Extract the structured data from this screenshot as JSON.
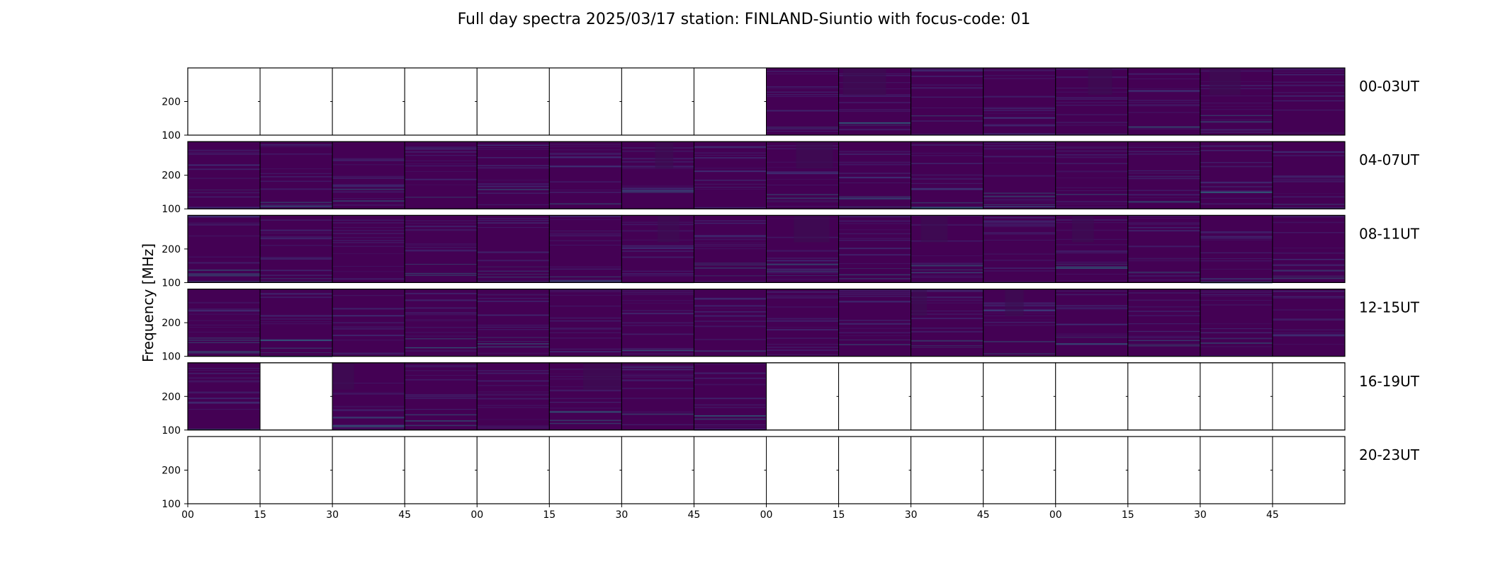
{
  "chart_data": {
    "type": "heatmap",
    "title": "Full day spectra 2025/03/17 station: FINLAND-Siuntio with focus-code: 01",
    "ylabel": "Frequency [MHz]",
    "ytick_labels": [
      "100",
      "200"
    ],
    "xtick_labels": [
      "00",
      "15",
      "30",
      "45",
      "00",
      "15",
      "30",
      "45",
      "00",
      "15",
      "30",
      "45",
      "00",
      "15",
      "30",
      "45"
    ],
    "colormap": "viridis",
    "row_labels": [
      "00-03UT",
      "04-07UT",
      "08-11UT",
      "12-15UT",
      "16-19UT",
      "20-23UT"
    ],
    "panels_per_row": 16,
    "data_available": [
      [
        0,
        0,
        0,
        0,
        0,
        0,
        0,
        0,
        1,
        1,
        1,
        1,
        1,
        1,
        1,
        1
      ],
      [
        1,
        1,
        1,
        1,
        1,
        1,
        1,
        1,
        1,
        1,
        1,
        1,
        1,
        1,
        1,
        1
      ],
      [
        1,
        1,
        1,
        1,
        1,
        1,
        1,
        1,
        1,
        1,
        1,
        1,
        1,
        1,
        1,
        1
      ],
      [
        1,
        1,
        1,
        1,
        1,
        1,
        1,
        1,
        1,
        1,
        1,
        1,
        1,
        1,
        1,
        1
      ],
      [
        1,
        0,
        1,
        1,
        1,
        1,
        1,
        1,
        0,
        0,
        0,
        0,
        0,
        0,
        0,
        0
      ],
      [
        0,
        0,
        0,
        0,
        0,
        0,
        0,
        0,
        0,
        0,
        0,
        0,
        0,
        0,
        0,
        0
      ]
    ],
    "colors": {
      "background": "#440154",
      "dark": "#3a0f52",
      "light": "#3b528b",
      "bright": "#21918c",
      "axis": "#000000"
    }
  }
}
